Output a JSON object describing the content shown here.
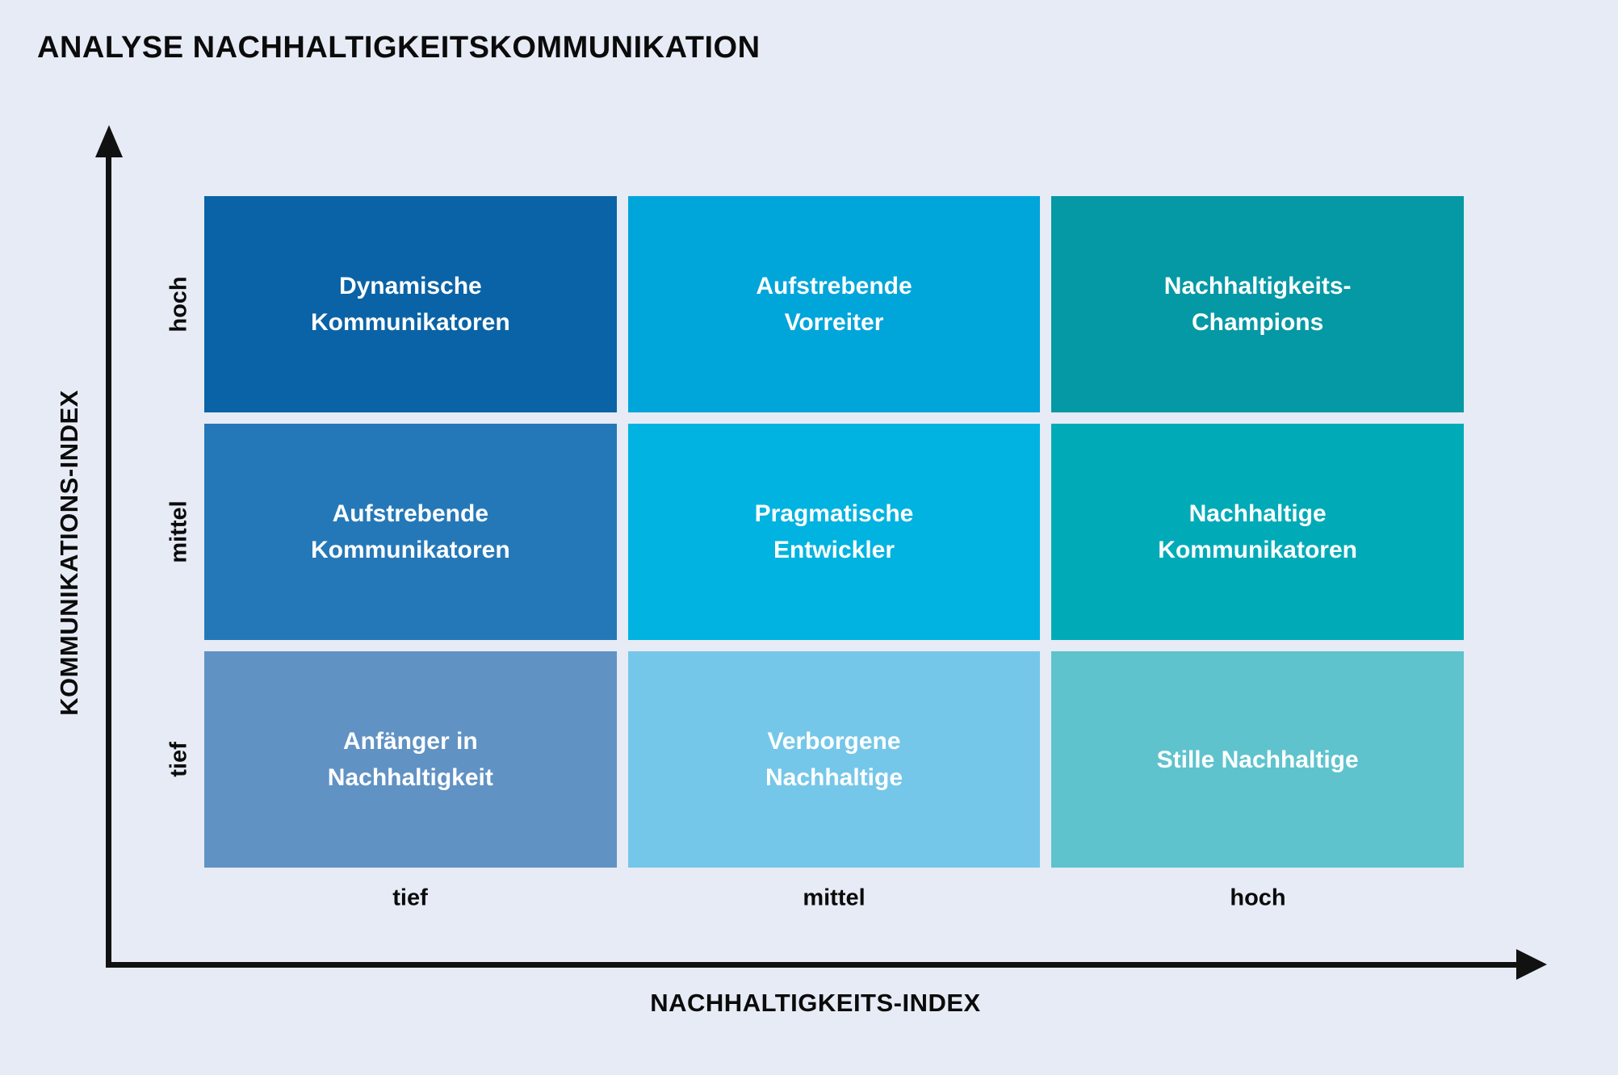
{
  "title": "ANALYSE NACHHALTIGKEITSKOMMUNIKATION",
  "colors": {
    "background": "#e6ebf5",
    "axis": "#111111",
    "cell_text": "#ffffff"
  },
  "chart_data": {
    "type": "heatmap",
    "title": "ANALYSE NACHHALTIGKEITSKOMMUNIKATION",
    "xlabel": "NACHHALTIGKEITS-INDEX",
    "ylabel": "KOMMUNIKATIONS-INDEX",
    "x_categories": [
      "tief",
      "mittel",
      "hoch"
    ],
    "y_categories": [
      "hoch",
      "mittel",
      "tief"
    ],
    "grid": "3x3 matrix, rows top-to-bottom = Kommunikations-Index hoch/mittel/tief, columns left-to-right = Nachhaltigkeits-Index tief/mittel/hoch",
    "legend": "none",
    "cells": [
      {
        "row": "hoch",
        "col": "tief",
        "label": "Dynamische Kommunikatoren",
        "line1": "Dynamische",
        "line2": "Kommunikatoren",
        "color": "#0a63a6"
      },
      {
        "row": "hoch",
        "col": "mittel",
        "label": "Aufstrebende Vorreiter",
        "line1": "Aufstrebende",
        "line2": "Vorreiter",
        "color": "#00a5da"
      },
      {
        "row": "hoch",
        "col": "hoch",
        "label": "Nachhaltigkeits-Champions",
        "line1": "Nachhaltigkeits-",
        "line2": "Champions",
        "color": "#0598a5"
      },
      {
        "row": "mittel",
        "col": "tief",
        "label": "Aufstrebende Kommunikatoren",
        "line1": "Aufstrebende",
        "line2": "Kommunikatoren",
        "color": "#2578b8"
      },
      {
        "row": "mittel",
        "col": "mittel",
        "label": "Pragmatische Entwickler",
        "line1": "Pragmatische",
        "line2": "Entwickler",
        "color": "#00b3e0"
      },
      {
        "row": "mittel",
        "col": "hoch",
        "label": "Nachhaltige Kommunikatoren",
        "line1": "Nachhaltige",
        "line2": "Kommunikatoren",
        "color": "#00abb7"
      },
      {
        "row": "tief",
        "col": "tief",
        "label": "Anfänger in Nachhaltigkeit",
        "line1": "Anfänger in",
        "line2": "Nachhaltigkeit",
        "color": "#6092c4"
      },
      {
        "row": "tief",
        "col": "mittel",
        "label": "Verborgene Nachhaltige",
        "line1": "Verborgene",
        "line2": "Nachhaltige",
        "color": "#75c7e9"
      },
      {
        "row": "tief",
        "col": "hoch",
        "label": "Stille Nachhaltige",
        "line1": "Stille Nachhaltige",
        "line2": "",
        "color": "#5ec3cd"
      }
    ]
  }
}
